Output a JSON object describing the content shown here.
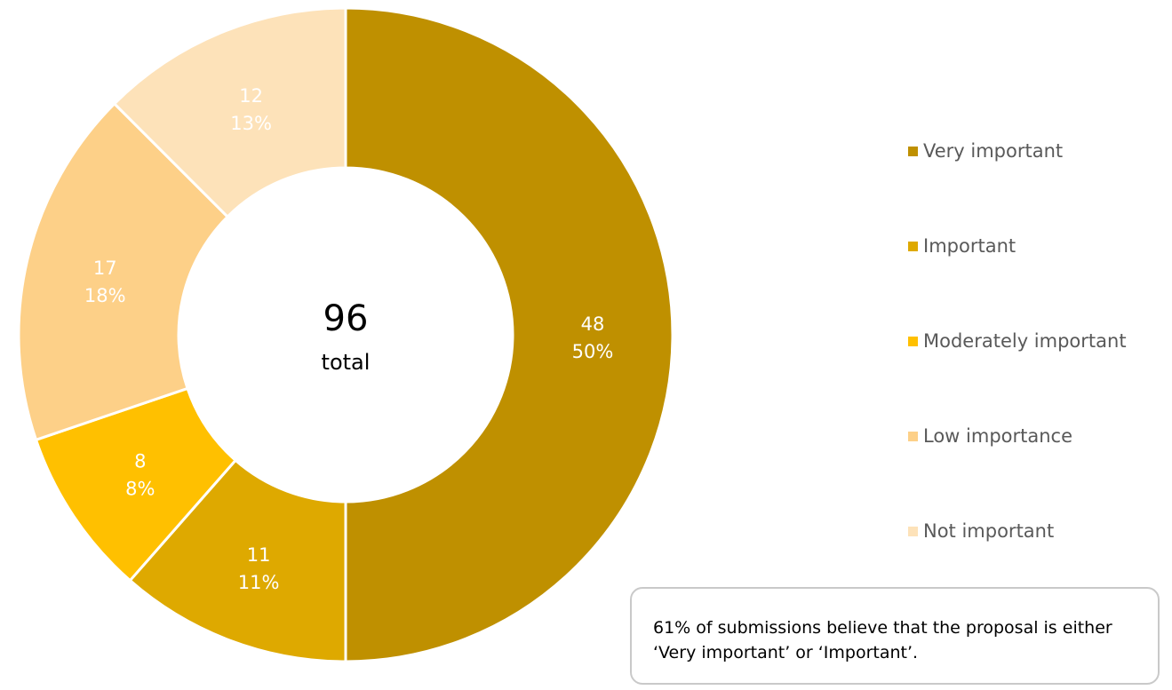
{
  "chart_data": {
    "type": "pie",
    "variant": "donut",
    "categories": [
      "Very important",
      "Important",
      "Moderately important",
      "Low importance",
      "Not important"
    ],
    "values": [
      48,
      11,
      8,
      17,
      12
    ],
    "percent_labels": [
      "50%",
      "11%",
      "8%",
      "18%",
      "13%"
    ],
    "colors": [
      "#bf9000",
      "#dea900",
      "#ffc000",
      "#fdd088",
      "#fde2b9"
    ],
    "total": "96",
    "total_label": "total",
    "legend_placement": "right"
  },
  "callout": {
    "text": "61% of submissions believe that the proposal is either ‘Very important’ or ‘Important’."
  }
}
